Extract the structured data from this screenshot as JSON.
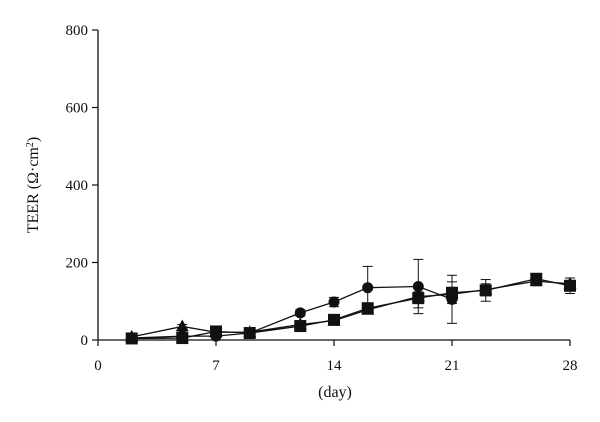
{
  "chart_data": {
    "type": "line",
    "title": "",
    "xlabel": "(day)",
    "ylabel": "TEER (Ω·cm²)",
    "ylabel_parts": {
      "main": "TEER (Ω·cm",
      "sup": "2",
      "close": ")"
    },
    "xlim": [
      0,
      28
    ],
    "ylim": [
      0,
      800
    ],
    "xticks": [
      0,
      7,
      14,
      21,
      28
    ],
    "yticks": [
      0,
      200,
      400,
      600,
      800
    ],
    "grid": false,
    "legend": "none",
    "color": "#111111",
    "series": [
      {
        "marker": "circle",
        "points": [
          {
            "x": 2,
            "y": 5,
            "err": 4
          },
          {
            "x": 5,
            "y": 10,
            "err": 3
          },
          {
            "x": 7,
            "y": 10,
            "err": 3
          },
          {
            "x": 9,
            "y": 18,
            "err": 3
          },
          {
            "x": 12,
            "y": 70,
            "err": 8
          },
          {
            "x": 14,
            "y": 98,
            "err": 12
          },
          {
            "x": 16,
            "y": 135,
            "err": 55
          },
          {
            "x": 19,
            "y": 138,
            "err": 70
          },
          {
            "x": 21,
            "y": 105,
            "err": 62
          }
        ]
      },
      {
        "marker": "triangle",
        "points": [
          {
            "x": 2,
            "y": 8,
            "err": 3
          },
          {
            "x": 5,
            "y": 35,
            "err": 5
          },
          {
            "x": 7,
            "y": 20,
            "err": 3
          },
          {
            "x": 9,
            "y": 20,
            "err": 3
          },
          {
            "x": 12,
            "y": 40,
            "err": 5
          },
          {
            "x": 14,
            "y": 50,
            "err": 5
          },
          {
            "x": 16,
            "y": 78,
            "err": 8
          },
          {
            "x": 19,
            "y": 112,
            "err": 12
          },
          {
            "x": 21,
            "y": 118,
            "err": 12
          },
          {
            "x": 23,
            "y": 130,
            "err": 15
          },
          {
            "x": 26,
            "y": 152,
            "err": 12
          },
          {
            "x": 28,
            "y": 145,
            "err": 15
          }
        ]
      },
      {
        "marker": "square",
        "points": [
          {
            "x": 2,
            "y": 4,
            "err": 3
          },
          {
            "x": 5,
            "y": 5,
            "err": 3
          },
          {
            "x": 7,
            "y": 22,
            "err": 3
          },
          {
            "x": 9,
            "y": 18,
            "err": 3
          },
          {
            "x": 12,
            "y": 36,
            "err": 5
          },
          {
            "x": 14,
            "y": 52,
            "err": 6
          },
          {
            "x": 16,
            "y": 82,
            "err": 10
          },
          {
            "x": 19,
            "y": 108,
            "err": 25
          },
          {
            "x": 21,
            "y": 122,
            "err": 28
          },
          {
            "x": 23,
            "y": 128,
            "err": 28
          },
          {
            "x": 26,
            "y": 158,
            "err": 10
          },
          {
            "x": 28,
            "y": 140,
            "err": 20
          }
        ]
      }
    ]
  }
}
